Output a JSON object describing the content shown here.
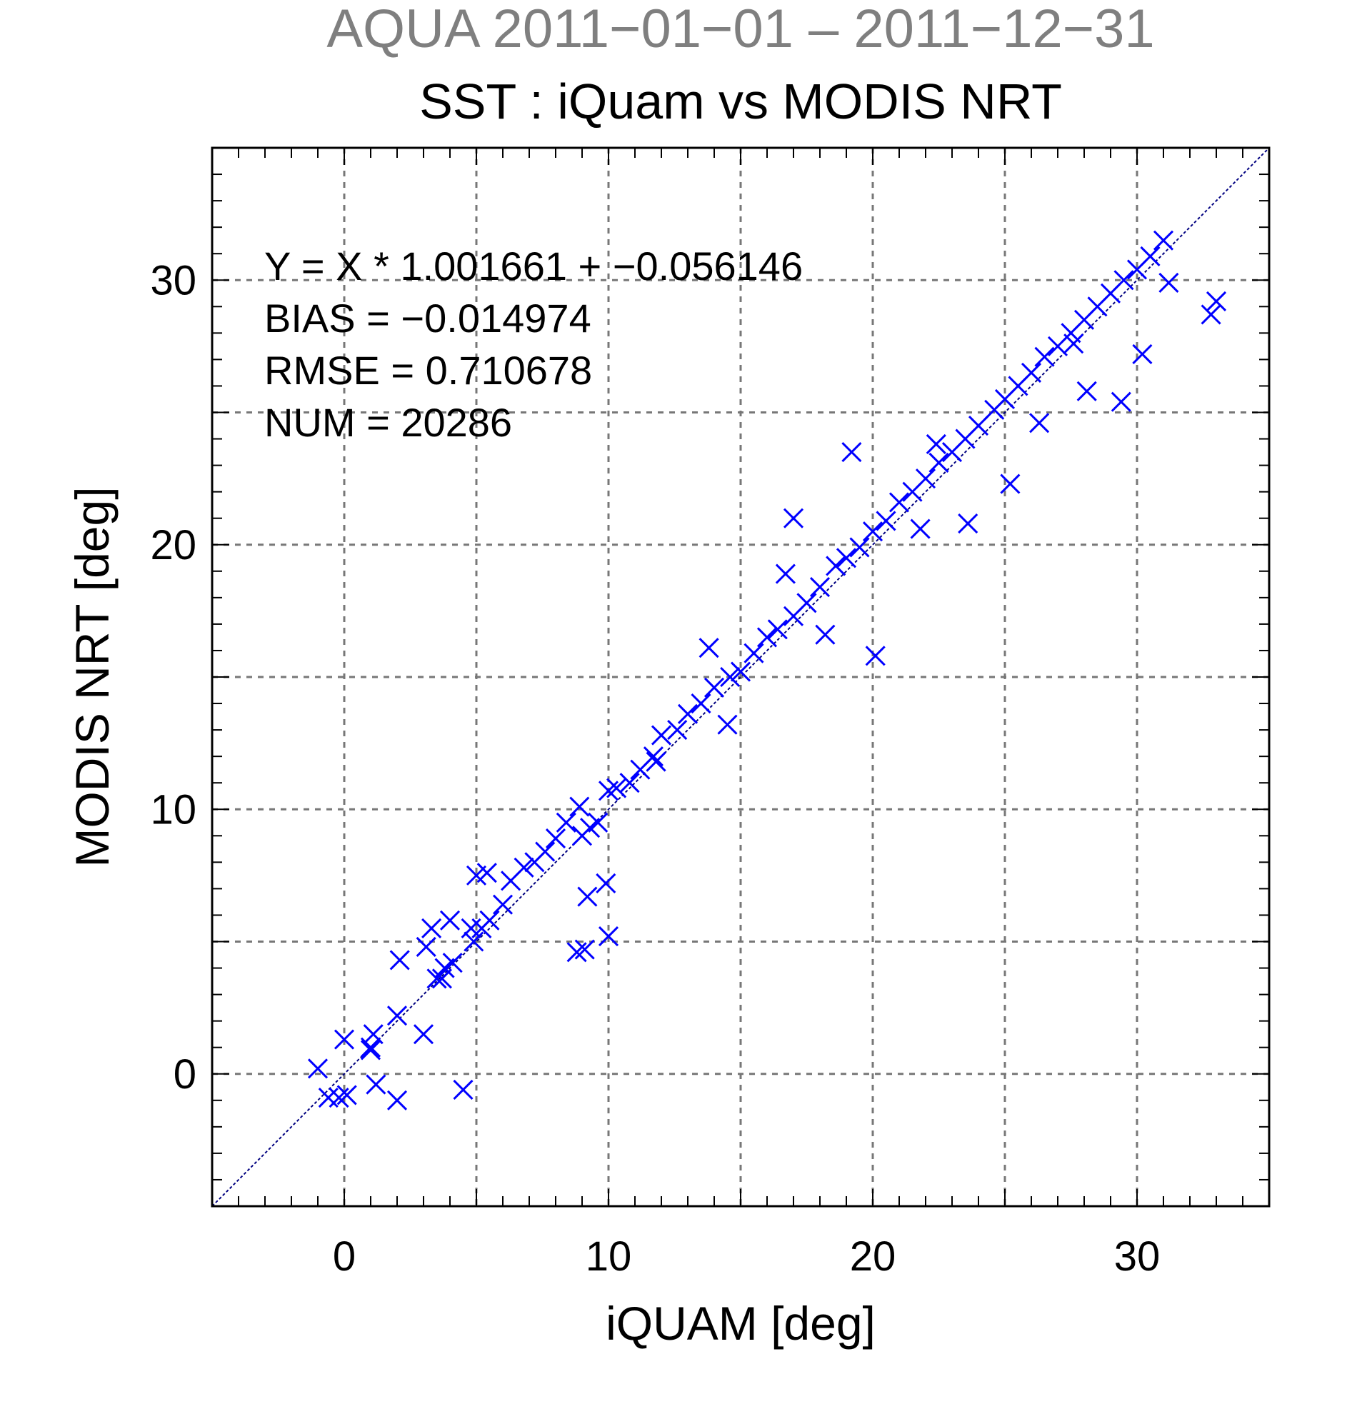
{
  "chart_data": {
    "type": "scatter",
    "suptitle": "AQUA  2011−01−01 – 2011−12−31",
    "title": "SST : iQuam vs MODIS NRT",
    "xlabel": "iQUAM [deg]",
    "ylabel": "MODIS NRT [deg]",
    "xlim": [
      -5,
      35
    ],
    "ylim": [
      -5,
      35
    ],
    "x_ticks": [
      0,
      10,
      20,
      30
    ],
    "y_ticks": [
      0,
      10,
      20,
      30
    ],
    "x_tick_labels": [
      "0",
      "10",
      "20",
      "30"
    ],
    "y_tick_labels": [
      "0",
      "10",
      "20",
      "30"
    ],
    "grid_step": 5,
    "grid": true,
    "marker": "x",
    "marker_color": "#0000ff",
    "reference_line": {
      "slope": 1,
      "intercept": 0,
      "color": "#000080",
      "style": "dashed"
    },
    "stats": [
      "Y = X * 1.001661 + −0.056146",
      "BIAS = −0.014974",
      "RMSE = 0.710678",
      "NUM = 20286"
    ],
    "series": [
      {
        "points_note": "",
        "x": [
          -1.0,
          -0.6,
          -0.2,
          0.0,
          0.1,
          1.0,
          1.1,
          1.2,
          1.0,
          2.0,
          2.1,
          2.0,
          3.0,
          3.1,
          3.3,
          3.5,
          3.8,
          4.0,
          3.7,
          4.1,
          4.5,
          4.9,
          5.0,
          5.2,
          5.5,
          6.0,
          6.3,
          6.8,
          7.2,
          7.6,
          8.0,
          8.4,
          8.9,
          9.0,
          9.3,
          9.1,
          9.6,
          10.0,
          10.3,
          10.8,
          11.2,
          11.7,
          12.0,
          12.6,
          13.0,
          13.5,
          14.0,
          14.6,
          15.0,
          15.5,
          16.0,
          16.4,
          17.0,
          17.5,
          18.0,
          18.6,
          19.0,
          19.5,
          20.0,
          20.5,
          21.0,
          21.5,
          22.0,
          22.5,
          23.0,
          23.5,
          24.0,
          24.6,
          25.0,
          25.5,
          26.0,
          26.5,
          27.0,
          27.5,
          28.0,
          28.5,
          29.0,
          29.5,
          30.0,
          30.5,
          31.0,
          32.8,
          33.0,
          8.8,
          9.2,
          9.9,
          10.0,
          4.8,
          5.4,
          11.8,
          14.5,
          18.2,
          20.1,
          23.6,
          26.3,
          29.4,
          13.8,
          16.7,
          21.8,
          25.2,
          28.1,
          30.2,
          17.0,
          19.2,
          22.4,
          27.6,
          31.2
        ],
        "y": [
          0.2,
          -0.9,
          -0.9,
          1.3,
          -0.8,
          0.9,
          1.5,
          -0.4,
          1.0,
          2.2,
          4.3,
          -1.0,
          1.5,
          4.8,
          5.5,
          3.6,
          4.0,
          5.8,
          3.6,
          4.2,
          -0.6,
          5.0,
          7.5,
          5.5,
          5.8,
          6.4,
          7.3,
          7.8,
          8.0,
          8.4,
          8.9,
          9.5,
          10.1,
          9.0,
          9.3,
          4.7,
          9.5,
          10.7,
          10.8,
          11.0,
          11.5,
          12.0,
          12.8,
          13.0,
          13.6,
          14.0,
          14.6,
          15.0,
          15.2,
          15.9,
          16.5,
          16.8,
          17.3,
          17.8,
          18.4,
          19.2,
          19.5,
          19.9,
          20.5,
          20.9,
          21.6,
          22.0,
          22.5,
          23.1,
          23.5,
          24.0,
          24.5,
          25.1,
          25.5,
          26.0,
          26.5,
          27.1,
          27.5,
          28.0,
          28.5,
          29.0,
          29.5,
          30.0,
          30.4,
          30.9,
          31.5,
          28.7,
          29.2,
          4.6,
          6.7,
          7.2,
          5.2,
          5.5,
          7.6,
          11.8,
          13.2,
          16.6,
          15.8,
          20.8,
          24.6,
          25.4,
          16.1,
          18.9,
          20.6,
          22.3,
          25.8,
          27.2,
          21.0,
          23.5,
          23.8,
          27.6,
          29.9
        ]
      }
    ]
  }
}
